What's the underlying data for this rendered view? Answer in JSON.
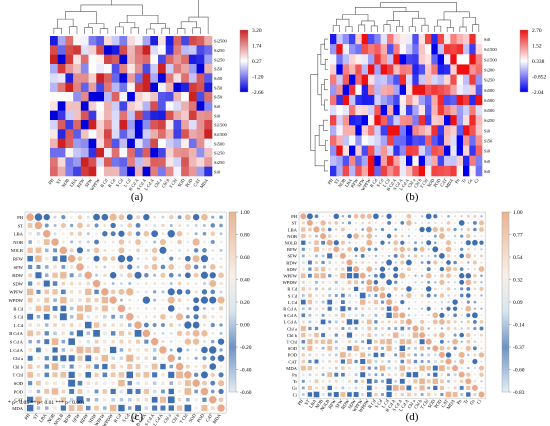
{
  "figure": {
    "panel_labels": {
      "a": "(a)",
      "b": "(b)",
      "c": "(c)",
      "d": "(d)"
    }
  },
  "chart_data": [
    {
      "panel": "(a)",
      "type": "heatmap",
      "row_labels": [
        "Si2500",
        "Si250",
        "Si250",
        "Si50",
        "Si50",
        "Si50",
        "Si50",
        "Si0",
        "Si0",
        "Si1500",
        "Si1500",
        "Si500",
        "Si250",
        "Si250",
        "Si0"
      ],
      "col_labels": [
        "PH",
        "ST",
        "NOB",
        "LBA",
        "RFW",
        "SFW",
        "WPFW",
        "B Cd",
        "R Cd",
        "S Cd",
        "L Cd",
        "B Cd A",
        "S Cd A",
        "L Cd A",
        "Chl a",
        "Chl b",
        "T Chl",
        "SOD",
        "POD",
        "CAT",
        "MDA"
      ],
      "colorbar": {
        "ticks": [
          "3.20",
          "1.74",
          "0.27",
          "-1.20",
          "-2.66"
        ],
        "vmin": -2.66,
        "vmax": 3.2,
        "colors": [
          "#0000dd",
          "#ffffff",
          "#cc2222"
        ]
      }
    },
    {
      "panel": "(b)",
      "type": "heatmap",
      "row_labels": [
        "Si0",
        "Si1500",
        "Si1500",
        "Si200",
        "Si250",
        "Si500",
        "Si500",
        "Si500",
        "Si250",
        "Si0",
        "Si50",
        "Si0",
        "Si0",
        "Si0"
      ],
      "col_labels": [
        "PH",
        "ST",
        "NOB",
        "LBA",
        "RFW",
        "SFW",
        "WPFW",
        "R Cd",
        "S Cd",
        "L Cd",
        "B Cd A",
        "S Cd A",
        "L Cd A",
        "Chl a",
        "Chl b",
        "T Chl",
        "SOD",
        "POD",
        "CAT",
        "MDA",
        "Pn",
        "Tr",
        "Gs",
        "Ci"
      ],
      "colorbar": {
        "ticks": [
          "2.70",
          "1.52",
          "0.338",
          "-0.852",
          "-2.04"
        ],
        "vmin": -2.04,
        "vmax": 2.7,
        "colors": [
          "#0000ee",
          "#ffffff",
          "#ee1111"
        ]
      }
    },
    {
      "panel": "(c)",
      "type": "heatmap",
      "variables": [
        "PH",
        "ST",
        "LBA",
        "NOB",
        "NOLB",
        "RFW",
        "SFW",
        "RDW",
        "SDW",
        "WPFW",
        "WPDW",
        "B Cd",
        "S Cd",
        "L Cd",
        "B Cd A",
        "S Cd A",
        "L Cd A",
        "Chl a",
        "Chl b",
        "T Chl",
        "SOD",
        "POD",
        "CAT",
        "MDA"
      ],
      "colorbar": {
        "ticks": [
          "1.00",
          "0.80",
          "0.60",
          "0.40",
          "0.20",
          "0.00",
          "-0.20",
          "-0.40",
          "-0.60"
        ],
        "vmin": -0.6,
        "vmax": 1.0
      },
      "legend_note": "* p< 0.05  ** p< 0.01  *** p< 0.001"
    },
    {
      "panel": "(d)",
      "type": "heatmap",
      "variables": [
        "PH",
        "ST",
        "LBA",
        "NOB",
        "NOLB",
        "RFW",
        "SFW",
        "RDW",
        "SDW",
        "WPFW",
        "WPDW",
        "R Cd",
        "S Cd",
        "L Cd",
        "R Cd A",
        "S Cd A",
        "L Cd A",
        "Chl a",
        "Chl b",
        "T Chl",
        "SOD",
        "POD",
        "CAT",
        "MDA",
        "Pn",
        "Tr",
        "Gs",
        "Ci"
      ],
      "colorbar": {
        "ticks": [
          "1.00",
          "0.77",
          "0.54",
          "0.32",
          "0.09",
          "-0.14",
          "-0.37",
          "-0.60",
          "-0.83"
        ],
        "vmin": -0.83,
        "vmax": 1.0
      }
    }
  ]
}
